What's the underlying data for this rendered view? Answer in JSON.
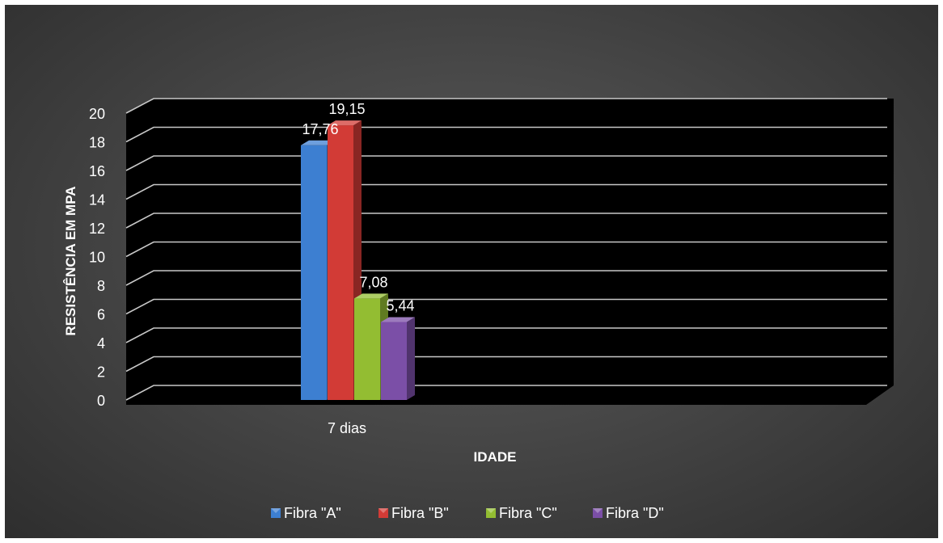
{
  "chart_data": {
    "type": "bar",
    "title": "",
    "xlabel": "IDADE",
    "ylabel": "RESISTÊNCIA EM MPA",
    "ylim": [
      0,
      20
    ],
    "ytick_step": 2,
    "ytick_labels": [
      "0",
      "2",
      "4",
      "6",
      "8",
      "10",
      "12",
      "14",
      "16",
      "18",
      "20"
    ],
    "categories": [
      "7 dias"
    ],
    "series": [
      {
        "name": "Fibra \"A\"",
        "values": [
          17.76
        ],
        "label": "17,76",
        "color": "#3d7fd1"
      },
      {
        "name": "Fibra \"B\"",
        "values": [
          19.15
        ],
        "label": "19,15",
        "color": "#d23b36"
      },
      {
        "name": "Fibra \"C\"",
        "values": [
          7.08
        ],
        "label": "7,08",
        "color": "#93bd32"
      },
      {
        "name": "Fibra \"D\"",
        "values": [
          5.44
        ],
        "label": "5,44",
        "color": "#7b4fa7"
      }
    ],
    "grid": true,
    "legend_position": "bottom",
    "style": "3d-clustered-column",
    "colors": {
      "background": "#444444",
      "plot_area": "#000000",
      "gridline": "#c8c8c8",
      "text": "#ffffff"
    }
  }
}
